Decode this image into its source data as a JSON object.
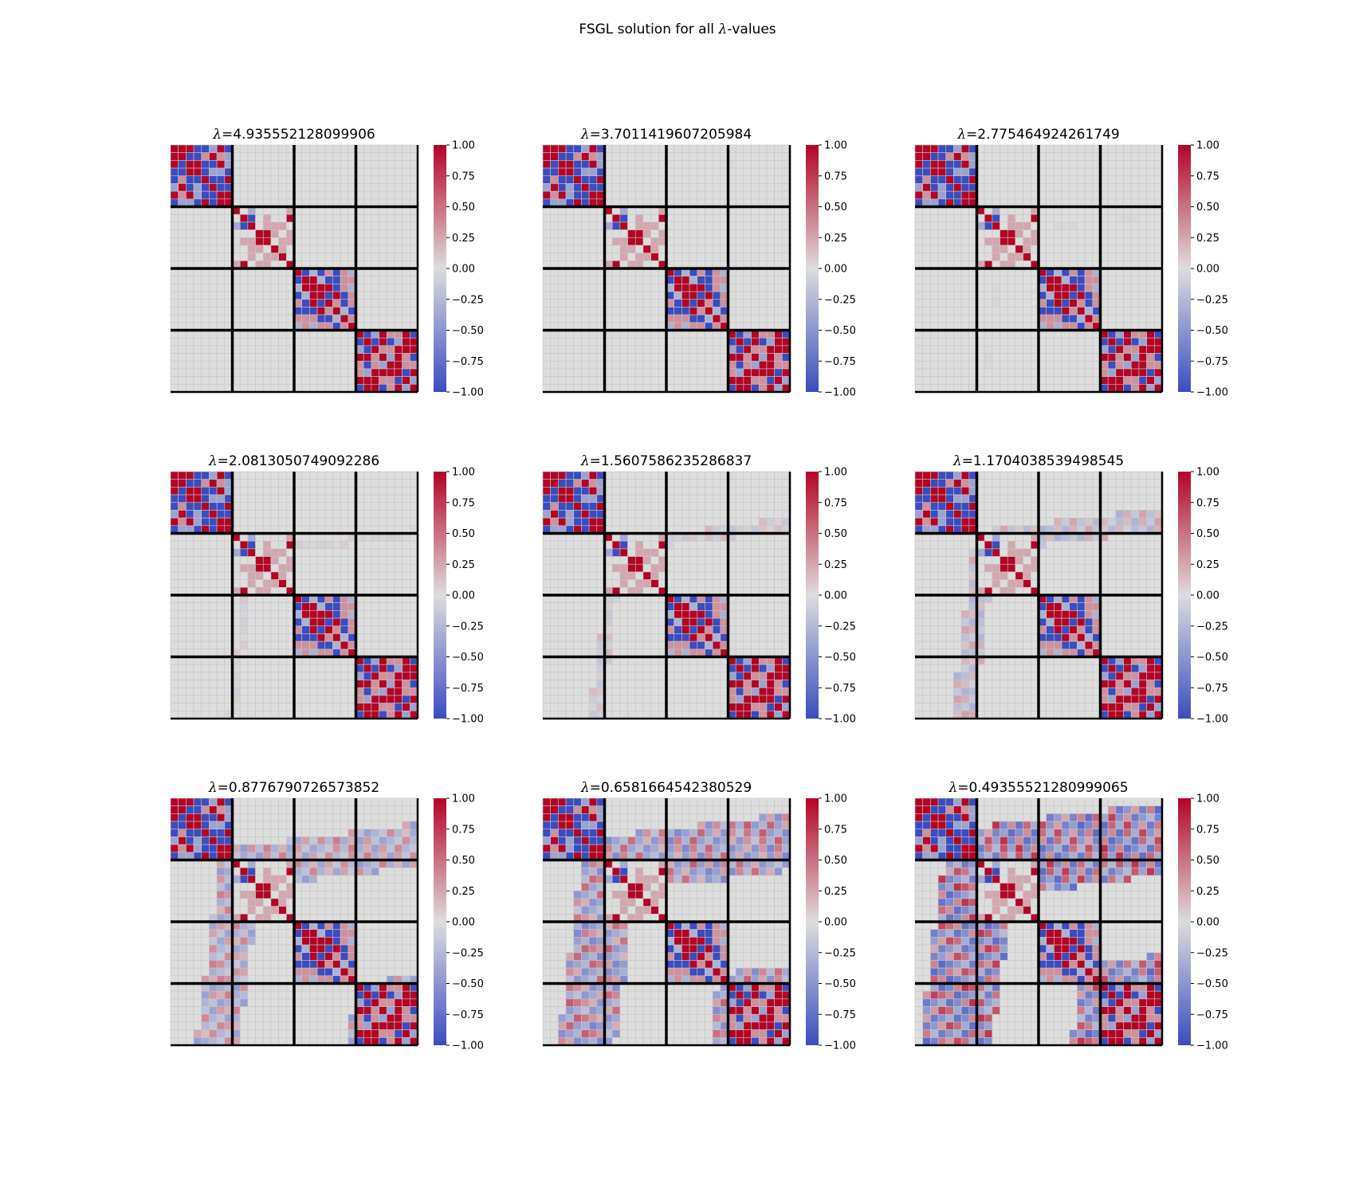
{
  "figure": {
    "suptitle_prefix": "FSGL solution for all ",
    "suptitle_symbol": "λ",
    "suptitle_suffix": "-values"
  },
  "colormap": {
    "name": "coolwarm",
    "low_color": "#3b4cc0",
    "mid_color": "#dddddd",
    "high_color": "#b40426",
    "grid_line_color": "#c4c4c4",
    "block_line_color": "#000000"
  },
  "chart_data": {
    "type": "heatmap",
    "matrix_size": 32,
    "block_size": 8,
    "n_blocks": 4,
    "vmin": -1.0,
    "vmax": 1.0,
    "colorbar_ticks": [
      "1.00",
      "0.75",
      "0.50",
      "0.25",
      "0.00",
      "−0.25",
      "−0.50",
      "−0.75",
      "−1.00"
    ],
    "title_symbol": "λ",
    "panels": [
      {
        "title": "=4.935552128099906",
        "lambda": 4.935552128099906,
        "offdiag_density": 0.0,
        "offdiag_strength": 0.0
      },
      {
        "title": "=3.7011419607205984",
        "lambda": 3.7011419607205984,
        "offdiag_density": 0.0,
        "offdiag_strength": 0.0
      },
      {
        "title": "=2.775464924261749",
        "lambda": 2.775464924261749,
        "offdiag_density": 0.02,
        "offdiag_strength": 0.05
      },
      {
        "title": "=2.0813050749092286",
        "lambda": 2.0813050749092286,
        "offdiag_density": 0.05,
        "offdiag_strength": 0.1
      },
      {
        "title": "=1.5607586235286837",
        "lambda": 1.5607586235286837,
        "offdiag_density": 0.08,
        "offdiag_strength": 0.18
      },
      {
        "title": "=1.1704038539498545",
        "lambda": 1.1704038539498545,
        "offdiag_density": 0.15,
        "offdiag_strength": 0.3
      },
      {
        "title": "=0.8776790726573852",
        "lambda": 0.8776790726573852,
        "offdiag_density": 0.28,
        "offdiag_strength": 0.45
      },
      {
        "title": "=0.6581664542380529",
        "lambda": 0.6581664542380529,
        "offdiag_density": 0.38,
        "offdiag_strength": 0.6
      },
      {
        "title": "=0.49355521280999065",
        "lambda": 0.49355521280999065,
        "offdiag_density": 0.48,
        "offdiag_strength": 0.8
      }
    ]
  }
}
